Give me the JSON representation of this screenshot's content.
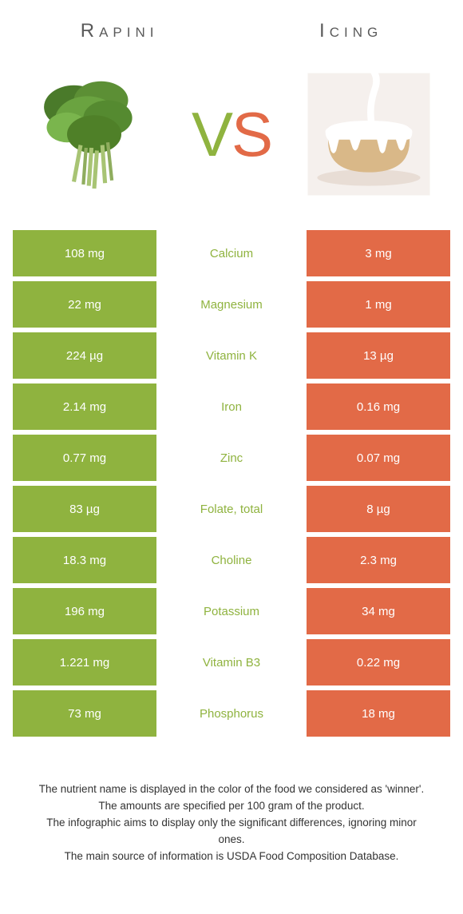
{
  "colors": {
    "green": "#8fb33f",
    "orange": "#e26a47",
    "nutrient_green": "#8fb33f",
    "text_dark": "#333333",
    "header_gray": "#5a5a5a"
  },
  "header": {
    "left_title": "Rapini",
    "right_title": "Icing"
  },
  "vs": {
    "v": "V",
    "s": "S"
  },
  "rows": [
    {
      "left": "108 mg",
      "mid": "Calcium",
      "right": "3 mg",
      "winner": "green"
    },
    {
      "left": "22 mg",
      "mid": "Magnesium",
      "right": "1 mg",
      "winner": "green"
    },
    {
      "left": "224 µg",
      "mid": "Vitamin K",
      "right": "13 µg",
      "winner": "green"
    },
    {
      "left": "2.14 mg",
      "mid": "Iron",
      "right": "0.16 mg",
      "winner": "green"
    },
    {
      "left": "0.77 mg",
      "mid": "Zinc",
      "right": "0.07 mg",
      "winner": "green"
    },
    {
      "left": "83 µg",
      "mid": "Folate, total",
      "right": "8 µg",
      "winner": "green"
    },
    {
      "left": "18.3 mg",
      "mid": "Choline",
      "right": "2.3 mg",
      "winner": "green"
    },
    {
      "left": "196 mg",
      "mid": "Potassium",
      "right": "34 mg",
      "winner": "green"
    },
    {
      "left": "1.221 mg",
      "mid": "Vitamin B3",
      "right": "0.22 mg",
      "winner": "green"
    },
    {
      "left": "73 mg",
      "mid": "Phosphorus",
      "right": "18 mg",
      "winner": "green"
    }
  ],
  "footer": {
    "line1": "The nutrient name is displayed in the color of the food we considered as 'winner'.",
    "line2": "The amounts are specified per 100 gram of the product.",
    "line3": "The infographic aims to display only the significant differences, ignoring minor ones.",
    "line4": "The main source of information is USDA Food Composition Database."
  }
}
